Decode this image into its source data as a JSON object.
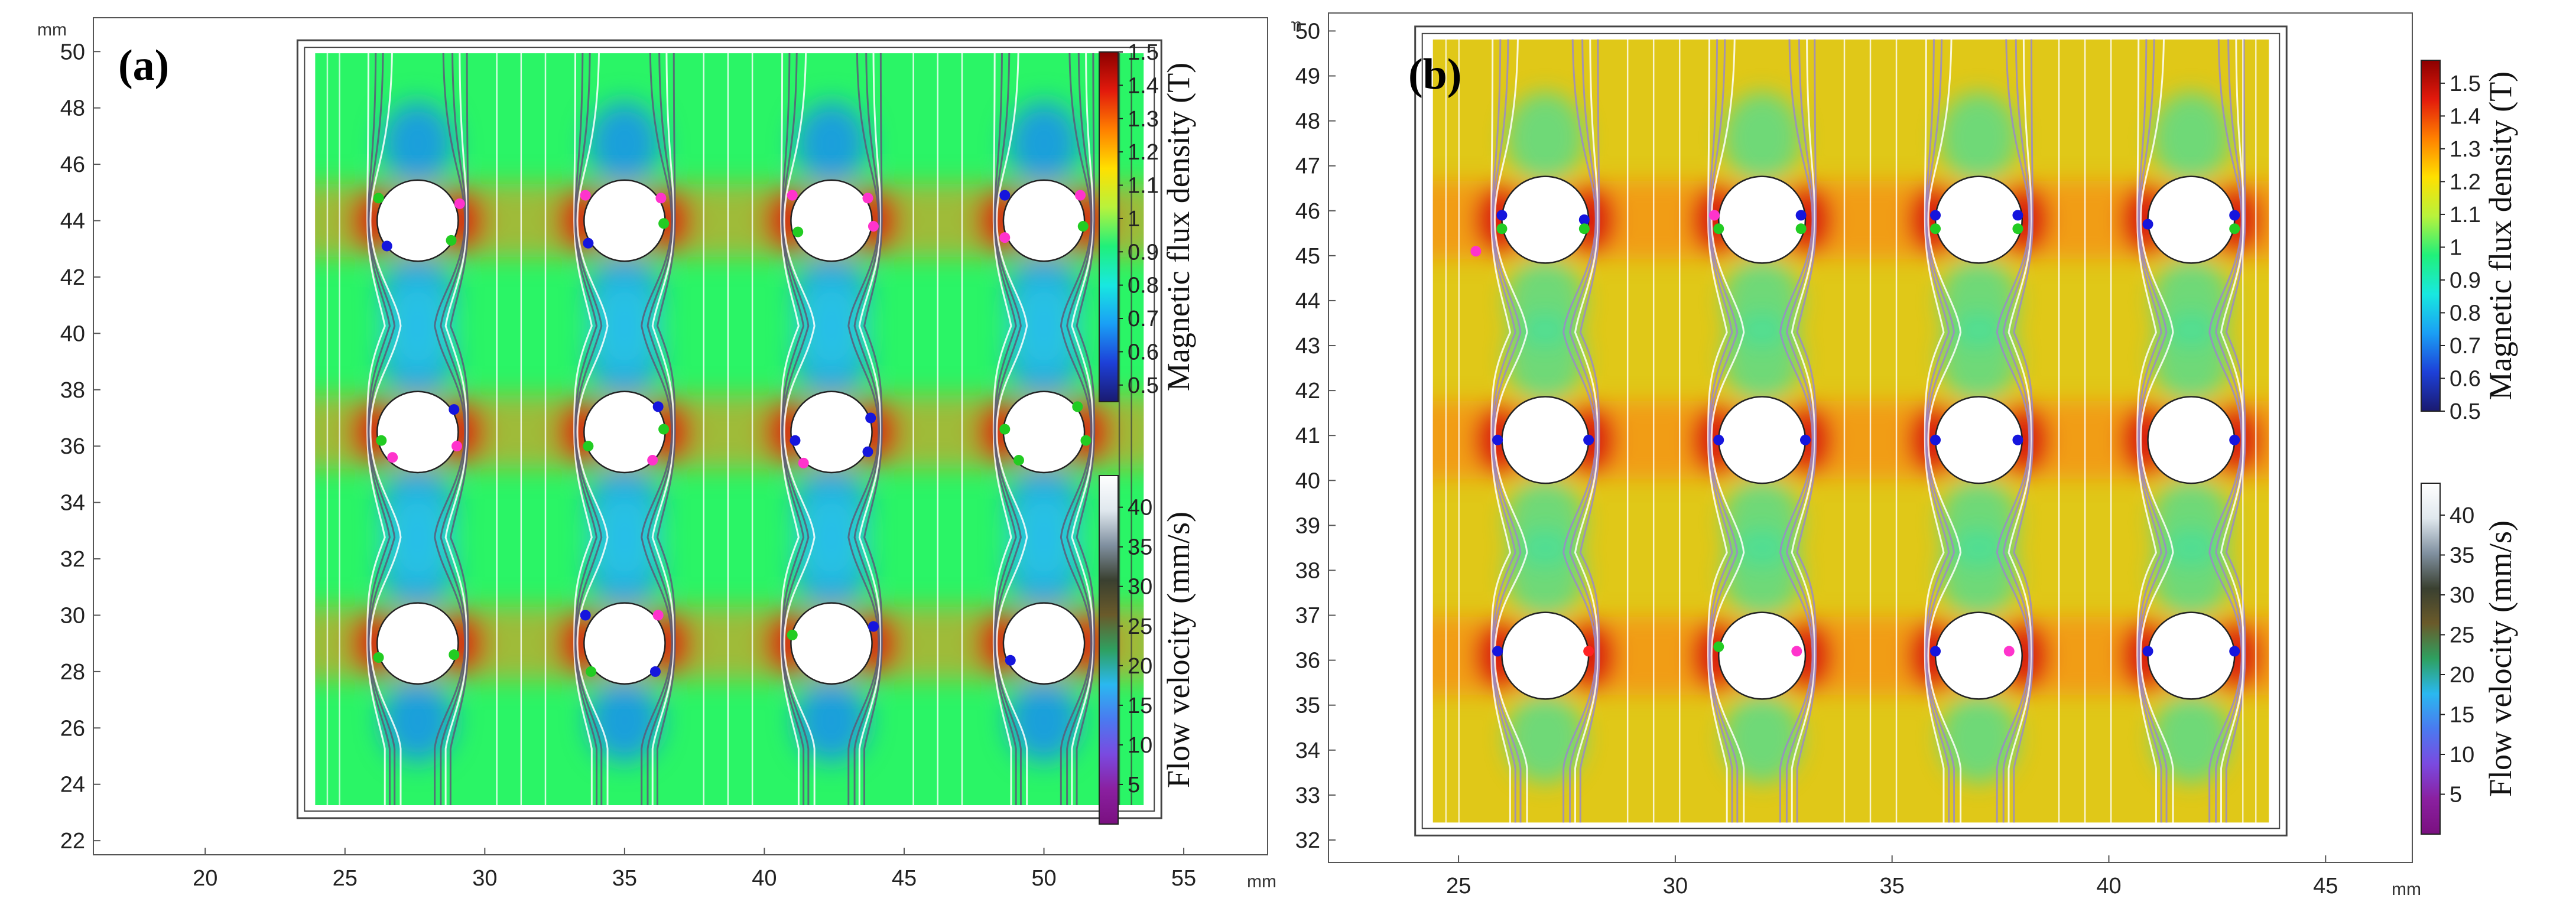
{
  "chart_data": [
    {
      "type": "heatmap",
      "panel_label": "(a)",
      "x_unit": "mm",
      "y_unit": "mm",
      "xlim": [
        16,
        58
      ],
      "ylim": [
        21.5,
        51.2
      ],
      "x_ticks": [
        20,
        25,
        30,
        35,
        40,
        45,
        50,
        55
      ],
      "y_ticks": [
        22,
        24,
        26,
        28,
        30,
        32,
        34,
        36,
        38,
        40,
        42,
        44,
        46,
        48,
        50
      ],
      "domain": {
        "x": [
          23.3,
          54.2
        ],
        "y": [
          22.8,
          50.4
        ]
      },
      "background_color": "#2af566",
      "obstacles": {
        "radius": 1.45,
        "centers_x": [
          27.6,
          35,
          42.4,
          50
        ],
        "centers_y": [
          44,
          36.5,
          29
        ]
      },
      "particles": [
        {
          "x": 26.2,
          "y": 44.8,
          "color": "#22cc22"
        },
        {
          "x": 29.1,
          "y": 44.6,
          "color": "#ff33cc"
        },
        {
          "x": 26.5,
          "y": 43.1,
          "color": "#1515dd"
        },
        {
          "x": 28.8,
          "y": 43.3,
          "color": "#22cc22"
        },
        {
          "x": 33.6,
          "y": 44.9,
          "color": "#ff33cc"
        },
        {
          "x": 36.3,
          "y": 44.8,
          "color": "#ff33cc"
        },
        {
          "x": 33.7,
          "y": 43.2,
          "color": "#1515dd"
        },
        {
          "x": 36.4,
          "y": 43.9,
          "color": "#22cc22"
        },
        {
          "x": 41.0,
          "y": 44.9,
          "color": "#ff33cc"
        },
        {
          "x": 43.7,
          "y": 44.8,
          "color": "#ff33cc"
        },
        {
          "x": 41.2,
          "y": 43.6,
          "color": "#22cc22"
        },
        {
          "x": 43.9,
          "y": 43.8,
          "color": "#ff33cc"
        },
        {
          "x": 48.6,
          "y": 44.9,
          "color": "#1515dd"
        },
        {
          "x": 51.3,
          "y": 44.9,
          "color": "#ff33cc"
        },
        {
          "x": 48.6,
          "y": 43.4,
          "color": "#ff33cc"
        },
        {
          "x": 51.4,
          "y": 43.8,
          "color": "#22cc22"
        },
        {
          "x": 28.9,
          "y": 37.3,
          "color": "#1515dd"
        },
        {
          "x": 26.3,
          "y": 36.2,
          "color": "#22cc22"
        },
        {
          "x": 29.0,
          "y": 36.0,
          "color": "#ff33cc"
        },
        {
          "x": 26.7,
          "y": 35.6,
          "color": "#ff33cc"
        },
        {
          "x": 36.2,
          "y": 37.4,
          "color": "#1515dd"
        },
        {
          "x": 36.4,
          "y": 36.6,
          "color": "#22cc22"
        },
        {
          "x": 33.7,
          "y": 36.0,
          "color": "#22cc22"
        },
        {
          "x": 36.0,
          "y": 35.5,
          "color": "#ff33cc"
        },
        {
          "x": 43.8,
          "y": 37.0,
          "color": "#1515dd"
        },
        {
          "x": 41.1,
          "y": 36.2,
          "color": "#1515dd"
        },
        {
          "x": 43.7,
          "y": 35.8,
          "color": "#1515dd"
        },
        {
          "x": 41.4,
          "y": 35.4,
          "color": "#ff33cc"
        },
        {
          "x": 51.2,
          "y": 37.4,
          "color": "#22cc22"
        },
        {
          "x": 48.6,
          "y": 36.6,
          "color": "#22cc22"
        },
        {
          "x": 51.5,
          "y": 36.2,
          "color": "#22cc22"
        },
        {
          "x": 49.1,
          "y": 35.5,
          "color": "#22cc22"
        },
        {
          "x": 26.2,
          "y": 28.5,
          "color": "#22cc22"
        },
        {
          "x": 28.9,
          "y": 28.6,
          "color": "#22cc22"
        },
        {
          "x": 33.6,
          "y": 30.0,
          "color": "#1515dd"
        },
        {
          "x": 36.2,
          "y": 30.0,
          "color": "#ff33cc"
        },
        {
          "x": 33.8,
          "y": 28.0,
          "color": "#22cc22"
        },
        {
          "x": 36.1,
          "y": 28.0,
          "color": "#1515dd"
        },
        {
          "x": 41.0,
          "y": 29.3,
          "color": "#22cc22"
        },
        {
          "x": 43.9,
          "y": 29.6,
          "color": "#1515dd"
        },
        {
          "x": 48.8,
          "y": 28.4,
          "color": "#1515dd"
        }
      ],
      "colorbars": [
        {
          "label": "Magnetic flux density (T)",
          "range": [
            0.45,
            1.5
          ],
          "ticks": [
            1.5,
            1.4,
            1.3,
            1.2,
            1.1,
            1,
            0.9,
            0.8,
            0.7,
            0.6,
            0.5
          ],
          "stops": [
            "#8b0000",
            "#e21a0c",
            "#ff8000",
            "#ffe000",
            "#b8f23c",
            "#20f07a",
            "#18e8e0",
            "#1a9ff5",
            "#1d40d8",
            "#1a1a70"
          ]
        },
        {
          "label": "Flow velocity (mm/s)",
          "range": [
            0,
            44
          ],
          "ticks": [
            40,
            35,
            30,
            25,
            20,
            15,
            10,
            5
          ],
          "stops": [
            "#ffffff",
            "#e0e8ee",
            "#8090a0",
            "#3a4030",
            "#6a5a2a",
            "#2ea060",
            "#2ab8f0",
            "#4a7af0",
            "#7a4ae0",
            "#8a20a0",
            "#7a1080"
          ]
        }
      ]
    },
    {
      "type": "heatmap",
      "panel_label": "(b)",
      "x_unit": "mm",
      "y_unit": "mm",
      "xlim": [
        22,
        47
      ],
      "ylim": [
        31.5,
        50.4
      ],
      "x_ticks": [
        25,
        30,
        35,
        40,
        45
      ],
      "y_ticks": [
        32,
        33,
        34,
        35,
        36,
        37,
        38,
        39,
        40,
        41,
        42,
        43,
        44,
        45,
        46,
        47,
        48,
        49,
        50
      ],
      "domain": {
        "x": [
          24.0,
          44.1
        ],
        "y": [
          32.1,
          50.1
        ]
      },
      "background_color": "#e0c818",
      "obstacles": {
        "radius": 1.0,
        "centers_x": [
          27,
          32,
          37,
          41.9
        ],
        "centers_y": [
          45.8,
          40.9,
          36.1
        ]
      },
      "particles": [
        {
          "x": 25.4,
          "y": 45.1,
          "color": "#ff33cc"
        },
        {
          "x": 26.0,
          "y": 45.9,
          "color": "#1515dd"
        },
        {
          "x": 26.0,
          "y": 45.6,
          "color": "#22cc22"
        },
        {
          "x": 27.9,
          "y": 45.8,
          "color": "#1515dd"
        },
        {
          "x": 27.9,
          "y": 45.6,
          "color": "#22cc22"
        },
        {
          "x": 30.9,
          "y": 45.9,
          "color": "#ff33cc"
        },
        {
          "x": 31.0,
          "y": 45.6,
          "color": "#22cc22"
        },
        {
          "x": 32.9,
          "y": 45.9,
          "color": "#1515dd"
        },
        {
          "x": 32.9,
          "y": 45.6,
          "color": "#22cc22"
        },
        {
          "x": 36.0,
          "y": 45.9,
          "color": "#1515dd"
        },
        {
          "x": 36.0,
          "y": 45.6,
          "color": "#22cc22"
        },
        {
          "x": 37.9,
          "y": 45.9,
          "color": "#1515dd"
        },
        {
          "x": 37.9,
          "y": 45.6,
          "color": "#22cc22"
        },
        {
          "x": 40.9,
          "y": 45.7,
          "color": "#1515dd"
        },
        {
          "x": 42.9,
          "y": 45.9,
          "color": "#1515dd"
        },
        {
          "x": 42.9,
          "y": 45.6,
          "color": "#22cc22"
        },
        {
          "x": 25.9,
          "y": 40.9,
          "color": "#1515dd"
        },
        {
          "x": 28.0,
          "y": 40.9,
          "color": "#1515dd"
        },
        {
          "x": 31.0,
          "y": 40.9,
          "color": "#1515dd"
        },
        {
          "x": 33.0,
          "y": 40.9,
          "color": "#1515dd"
        },
        {
          "x": 36.0,
          "y": 40.9,
          "color": "#1515dd"
        },
        {
          "x": 37.9,
          "y": 40.9,
          "color": "#1515dd"
        },
        {
          "x": 42.9,
          "y": 40.9,
          "color": "#1515dd"
        },
        {
          "x": 25.9,
          "y": 36.2,
          "color": "#1515dd"
        },
        {
          "x": 28.0,
          "y": 36.2,
          "color": "#ff2222"
        },
        {
          "x": 31.0,
          "y": 36.3,
          "color": "#22cc22"
        },
        {
          "x": 32.8,
          "y": 36.2,
          "color": "#ff33cc"
        },
        {
          "x": 36.0,
          "y": 36.2,
          "color": "#1515dd"
        },
        {
          "x": 37.7,
          "y": 36.2,
          "color": "#ff33cc"
        },
        {
          "x": 40.9,
          "y": 36.2,
          "color": "#1515dd"
        },
        {
          "x": 42.9,
          "y": 36.2,
          "color": "#1515dd"
        }
      ],
      "colorbars": [
        {
          "label": "Magnetic flux density (T)",
          "range": [
            0.5,
            1.57
          ],
          "ticks": [
            1.5,
            1.4,
            1.3,
            1.2,
            1.1,
            1,
            0.9,
            0.8,
            0.7,
            0.6,
            0.5
          ],
          "stops": [
            "#8b0000",
            "#e21a0c",
            "#ff8000",
            "#ffe000",
            "#b8f23c",
            "#20f07a",
            "#18e8e0",
            "#1a9ff5",
            "#1d40d8",
            "#1a1a70"
          ]
        },
        {
          "label": "Flow velocity (mm/s)",
          "range": [
            0,
            44
          ],
          "ticks": [
            40,
            35,
            30,
            25,
            20,
            15,
            10,
            5
          ],
          "stops": [
            "#ffffff",
            "#e0e8ee",
            "#8090a0",
            "#3a4030",
            "#6a5a2a",
            "#2ea060",
            "#2ab8f0",
            "#4a7af0",
            "#7a4ae0",
            "#8a20a0",
            "#7a1080"
          ]
        }
      ]
    }
  ]
}
